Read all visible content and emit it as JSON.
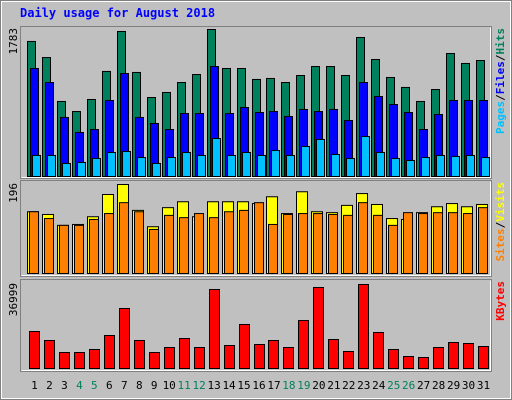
{
  "title": "Daily usage for August 2018",
  "separator": "/",
  "categories": [
    "1",
    "2",
    "3",
    "4",
    "5",
    "6",
    "7",
    "8",
    "9",
    "10",
    "11",
    "12",
    "13",
    "14",
    "15",
    "16",
    "17",
    "18",
    "19",
    "20",
    "21",
    "22",
    "23",
    "24",
    "25",
    "26",
    "27",
    "28",
    "29",
    "30",
    "31"
  ],
  "category_colors": [
    "#000000",
    "#000000",
    "#000000",
    "#00805c",
    "#00805c",
    "#000000",
    "#000000",
    "#000000",
    "#000000",
    "#000000",
    "#00805c",
    "#00805c",
    "#000000",
    "#000000",
    "#000000",
    "#000000",
    "#000000",
    "#00805c",
    "#00805c",
    "#000000",
    "#000000",
    "#000000",
    "#000000",
    "#000000",
    "#00805c",
    "#00805c",
    "#000000",
    "#000000",
    "#000000",
    "#000000",
    "#000000"
  ],
  "chart_data": [
    {
      "type": "bar",
      "ylim": [
        0,
        1783
      ],
      "yticks": [
        1783
      ],
      "series": [
        {
          "name": "Hits",
          "color": "#00805c",
          "values": [
            1638,
            1443,
            910,
            788,
            934,
            1274,
            1759,
            1262,
            958,
            1019,
            1140,
            1237,
            1783,
            1310,
            1310,
            1177,
            1189,
            1140,
            1225,
            1334,
            1334,
            1225,
            1686,
            1419,
            1201,
            1080,
            910,
            1055,
            1492,
            1371,
            1407
          ]
        },
        {
          "name": "Files",
          "color": "#0000ff",
          "values": [
            1310,
            1140,
            716,
            534,
            570,
            922,
            1249,
            716,
            643,
            570,
            764,
            764,
            1334,
            764,
            837,
            776,
            788,
            728,
            813,
            788,
            813,
            679,
            1140,
            970,
            873,
            776,
            570,
            752,
            922,
            922,
            922
          ]
        },
        {
          "name": "Pages",
          "color": "#00c0ff",
          "values": [
            255,
            255,
            158,
            170,
            218,
            291,
            303,
            230,
            158,
            230,
            291,
            255,
            461,
            255,
            291,
            255,
            315,
            255,
            364,
            449,
            267,
            218,
            485,
            291,
            218,
            194,
            230,
            255,
            243,
            255,
            230
          ]
        }
      ]
    },
    {
      "type": "bar",
      "ylim": [
        0,
        196
      ],
      "yticks": [
        196
      ],
      "series": [
        {
          "name": "Visits",
          "color": "#ffff00",
          "values": [
            136,
            130,
            106,
            108,
            125,
            174,
            196,
            139,
            103,
            145,
            158,
            125,
            158,
            158,
            158,
            154,
            169,
            132,
            180,
            136,
            134,
            150,
            176,
            152,
            121,
            119,
            134,
            147,
            154,
            147,
            152
          ]
        },
        {
          "name": "Sites",
          "color": "#ff8000",
          "values": [
            136,
            121,
            106,
            106,
            119,
            132,
            156,
            136,
            97,
            128,
            123,
            132,
            123,
            136,
            139,
            156,
            108,
            130,
            132,
            132,
            130,
            128,
            156,
            128,
            106,
            134,
            132,
            134,
            134,
            132,
            145
          ]
        }
      ]
    },
    {
      "type": "bar",
      "ylim": [
        0,
        36999
      ],
      "yticks": [
        36999
      ],
      "series": [
        {
          "name": "KBytes",
          "color": "#ff0000",
          "values": [
            16298,
            12334,
            7048,
            7048,
            8370,
            14537,
            26430,
            12334,
            7048,
            9251,
            13215,
            9251,
            34800,
            10132,
            19382,
            10572,
            12334,
            9251,
            21144,
            35681,
            12775,
            7489,
            36999,
            15858,
            8370,
            5286,
            4846,
            9251,
            11453,
            11013,
            9691
          ]
        }
      ]
    }
  ]
}
